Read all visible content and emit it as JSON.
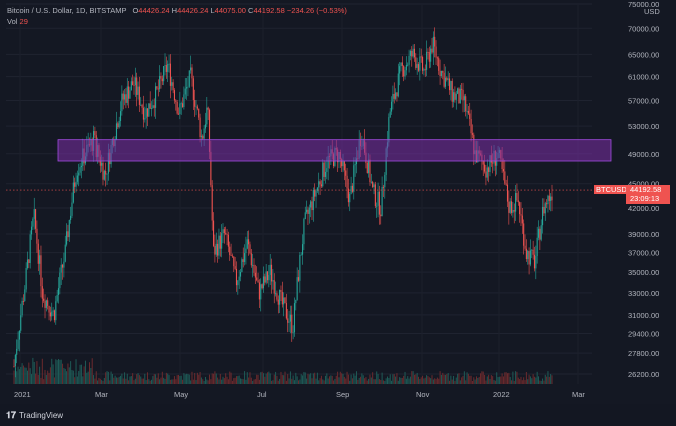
{
  "legend": {
    "symbol": "Bitcoin / U.S. Dollar, 1D, BITSTAMP",
    "open_label": "O",
    "open": "44426.24",
    "high_label": "H",
    "high": "44426.24",
    "low_label": "L",
    "low": "44075.00",
    "close_label": "C",
    "close": "44192.58",
    "change": "−234.26 (−0.53%)",
    "vol_label": "Vol",
    "vol": "29"
  },
  "price_axis": {
    "currency": "USD",
    "ticks": [
      "75000.00",
      "70000.00",
      "65000.00",
      "61000.00",
      "57000.00",
      "53000.00",
      "49000.00",
      "45000.00",
      "42000.00",
      "39000.00",
      "37000.00",
      "35000.00",
      "33000.00",
      "31000.00",
      "29400.00",
      "27800.00",
      "26200.00"
    ]
  },
  "price_tag": {
    "symbol": "BTCUSD",
    "price": "44192.58",
    "countdown": "23:09:13"
  },
  "time_axis": {
    "labels": [
      "2021",
      "Mar",
      "May",
      "Jul",
      "Sep",
      "Nov",
      "2022",
      "Mar"
    ]
  },
  "branding": {
    "logo_text": "TradingView"
  },
  "colors": {
    "background": "#141823",
    "up": "#26a69a",
    "down": "#ef5350",
    "zone_fill": "#7b2fa8",
    "zone_border": "#a24be0",
    "price_line": "#ef5350"
  },
  "chart_data": {
    "type": "candlestick",
    "symbol": "BTCUSD",
    "interval": "1D",
    "series": [
      {
        "name": "price",
        "x": [
          "2021-01",
          "2021-02",
          "2021-03",
          "2021-04",
          "2021-05",
          "2021-06",
          "2021-07",
          "2021-08",
          "2021-09",
          "2021-10",
          "2021-11",
          "2021-12",
          "2022-01",
          "2022-02"
        ],
        "values": [
          33000,
          45000,
          58000,
          60000,
          37000,
          35000,
          33000,
          47000,
          44000,
          61000,
          57000,
          47000,
          38000,
          44192.58
        ]
      }
    ],
    "zone": {
      "from": 48000,
      "to": 51000
    },
    "last_price": 44192.58,
    "ylim": [
      26200,
      75000
    ],
    "scale": "log",
    "grid": true
  }
}
